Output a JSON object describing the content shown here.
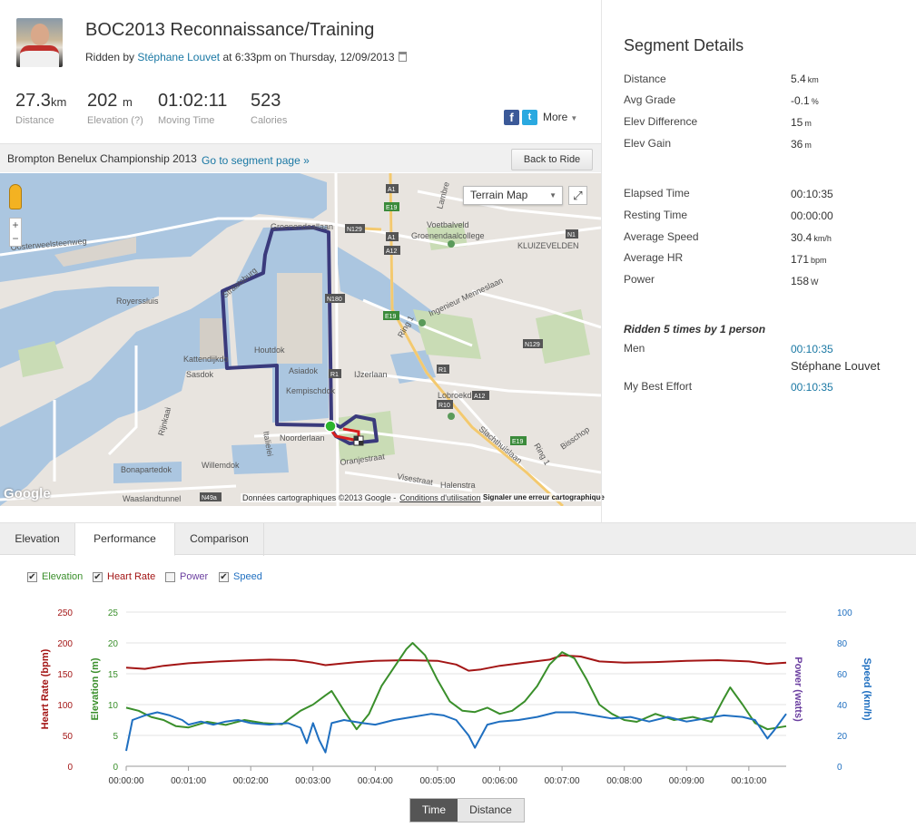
{
  "activity": {
    "title": "BOC2013 Reconnaissance/Training",
    "ridden_by_prefix": "Ridden by",
    "athlete": "Stéphane Louvet",
    "datetime_text": "at 6:33pm on Thursday, 12/09/2013"
  },
  "stats": [
    {
      "value": "27.3",
      "unit": "km",
      "label": "Distance"
    },
    {
      "value": "202",
      "unit": "m",
      "label": "Elevation (?)"
    },
    {
      "value": "01:02:11",
      "unit": "",
      "label": "Moving Time"
    },
    {
      "value": "523",
      "unit": "",
      "label": "Calories"
    }
  ],
  "share": {
    "facebook": "f",
    "twitter": "t",
    "more_label": "More"
  },
  "segment_bar": {
    "segment_name": "Brompton Benelux Championship 2013",
    "go_link": "Go to segment page »",
    "back_button": "Back to Ride"
  },
  "map": {
    "type_selector": "Terrain Map",
    "attribution": "Données cartographiques ©2013 Google -",
    "terms": "Conditions d'utilisation",
    "report": "Signaler une erreur cartographique",
    "logo": "Google",
    "zoom_in": "+",
    "zoom_out": "−",
    "labels": [
      {
        "name": "oosterweelsteenweg",
        "text": "Oosterweelsteenweg"
      },
      {
        "name": "royerssluis",
        "text": "Royerssluis"
      },
      {
        "name": "kattendijkdok",
        "text": "Kattendijkdo"
      },
      {
        "name": "sasdok",
        "text": "Sasdok"
      },
      {
        "name": "houtdok",
        "text": "Houtdok"
      },
      {
        "name": "asiadok",
        "text": "Asiadok"
      },
      {
        "name": "kempischdok",
        "text": "Kempischdok"
      },
      {
        "name": "ijzerlaan",
        "text": "IJzerlaan"
      },
      {
        "name": "noorderlaan",
        "text": "Noorderlaan"
      },
      {
        "name": "willemdok",
        "text": "Willemdok"
      },
      {
        "name": "bonapartedok",
        "text": "Bonapartedok"
      },
      {
        "name": "waaslandtunnel",
        "text": "Waaslandtunnel"
      },
      {
        "name": "voetbalveld",
        "text": "Voetbalveld"
      },
      {
        "name": "groenendaal",
        "text": "Groenendaalcollege"
      },
      {
        "name": "kluizeveldn",
        "text": "KLUIZEVELDEN"
      },
      {
        "name": "menneslaan",
        "text": "Ingenieur Menneslaan"
      },
      {
        "name": "ring1",
        "text": "Ring 1"
      },
      {
        "name": "lobroekdok",
        "text": "Lobroekdok"
      },
      {
        "name": "slachthuislaan",
        "text": "Slachthuislaan"
      },
      {
        "name": "oranjestraat",
        "text": "Oranjestraat"
      },
      {
        "name": "visestraat",
        "text": "Visestraat"
      },
      {
        "name": "halenstr",
        "text": "Halenstra"
      },
      {
        "name": "italielei",
        "text": "Italielei"
      },
      {
        "name": "rijnkaai",
        "text": "Rijnkaai"
      },
      {
        "name": "bisschop",
        "text": "Bisschop"
      },
      {
        "name": "lambre",
        "text": "Lambre"
      },
      {
        "name": "ring1b",
        "text": "Ring 1"
      },
      {
        "name": "straatsburg",
        "text": "Straatsburg"
      },
      {
        "name": "noordkasteel",
        "text": "Groenendaallaan"
      }
    ],
    "shields": [
      {
        "name": "a1-top",
        "text": "A1"
      },
      {
        "name": "e19-top",
        "text": "E19"
      },
      {
        "name": "a12-top",
        "text": "A12"
      },
      {
        "name": "a1-mid",
        "text": "A1"
      },
      {
        "name": "n129-top",
        "text": "N129"
      },
      {
        "name": "n180",
        "text": "N180"
      },
      {
        "name": "e19-mid",
        "text": "E19"
      },
      {
        "name": "n1",
        "text": "N1"
      },
      {
        "name": "n129-mid",
        "text": "N129"
      },
      {
        "name": "r1",
        "text": "R1"
      },
      {
        "name": "a12-low",
        "text": "A12"
      },
      {
        "name": "r10",
        "text": "R10"
      },
      {
        "name": "e19-low",
        "text": "E19"
      },
      {
        "name": "n49a",
        "text": "N49a"
      },
      {
        "name": "r1b",
        "text": "R1"
      }
    ]
  },
  "segment_details": {
    "heading": "Segment Details",
    "rows": [
      {
        "label": "Distance",
        "value": "5.4",
        "unit": "km"
      },
      {
        "label": "Avg Grade",
        "value": "-0.1",
        "unit": "%"
      },
      {
        "label": "Elev Difference",
        "value": "15",
        "unit": "m"
      },
      {
        "label": "Elev Gain",
        "value": "36",
        "unit": "m"
      }
    ],
    "rows2": [
      {
        "label": "Elapsed Time",
        "value": "00:10:35",
        "unit": ""
      },
      {
        "label": "Resting Time",
        "value": "00:00:00",
        "unit": ""
      },
      {
        "label": "Average Speed",
        "value": "30.4",
        "unit": "km/h"
      },
      {
        "label": "Average HR",
        "value": "171",
        "unit": "bpm"
      },
      {
        "label": "Power",
        "value": "158",
        "unit": "W"
      }
    ],
    "ridden": "Ridden 5 times by 1 person",
    "men_label": "Men",
    "men_time": "00:10:35",
    "men_name": "Stéphane Louvet",
    "best_label": "My Best Effort",
    "best_time": "00:10:35"
  },
  "tabs": [
    "Elevation",
    "Performance",
    "Comparison"
  ],
  "legend": [
    {
      "label": "Elevation",
      "checked": true,
      "color": "#3a8f2b"
    },
    {
      "label": "Heart Rate",
      "checked": true,
      "color": "#a31515"
    },
    {
      "label": "Power",
      "checked": false,
      "color": "#6b3fa0"
    },
    {
      "label": "Speed",
      "checked": true,
      "color": "#1f6fc0"
    }
  ],
  "toggle": {
    "time": "Time",
    "distance": "Distance"
  },
  "chart_data": {
    "type": "line",
    "x": [
      "00:00:00",
      "00:01:00",
      "00:02:00",
      "00:03:00",
      "00:04:00",
      "00:05:00",
      "00:06:00",
      "00:07:00",
      "00:08:00",
      "00:09:00",
      "00:10:00"
    ],
    "axes": {
      "heart_rate": {
        "label": "Heart Rate (bpm)",
        "ticks": [
          "0",
          "50",
          "100",
          "150",
          "200",
          "250"
        ],
        "range": [
          0,
          250
        ],
        "color": "#a31515"
      },
      "elevation": {
        "label": "Elevation (m)",
        "ticks": [
          "0",
          "5",
          "10",
          "15",
          "20",
          "25"
        ],
        "range": [
          0,
          25
        ],
        "color": "#3a8f2b"
      },
      "power": {
        "label": "Power (watts)",
        "color": "#6b3fa0"
      },
      "speed": {
        "label": "Speed (km/h)",
        "ticks": [
          "0",
          "20",
          "40",
          "60",
          "80",
          "100"
        ],
        "range": [
          0,
          100
        ],
        "color": "#1f6fc0"
      }
    },
    "time_range_min": [
      0,
      10.6
    ],
    "series": [
      {
        "name": "Heart Rate",
        "axis": "heart_rate",
        "color": "#a31515",
        "points": [
          [
            0,
            160
          ],
          [
            0.3,
            158
          ],
          [
            0.6,
            163
          ],
          [
            1.0,
            167
          ],
          [
            1.5,
            170
          ],
          [
            2.0,
            172
          ],
          [
            2.3,
            173
          ],
          [
            2.7,
            172
          ],
          [
            3.0,
            168
          ],
          [
            3.2,
            164
          ],
          [
            3.4,
            166
          ],
          [
            3.7,
            169
          ],
          [
            4.0,
            171
          ],
          [
            4.5,
            172
          ],
          [
            5.0,
            171
          ],
          [
            5.3,
            165
          ],
          [
            5.5,
            155
          ],
          [
            5.7,
            157
          ],
          [
            6.0,
            163
          ],
          [
            6.4,
            168
          ],
          [
            6.8,
            173
          ],
          [
            7.0,
            180
          ],
          [
            7.3,
            178
          ],
          [
            7.6,
            170
          ],
          [
            8.0,
            168
          ],
          [
            8.5,
            169
          ],
          [
            9.0,
            171
          ],
          [
            9.5,
            172
          ],
          [
            10.0,
            170
          ],
          [
            10.3,
            166
          ],
          [
            10.6,
            168
          ]
        ]
      },
      {
        "name": "Elevation",
        "axis": "elevation",
        "color": "#3a8f2b",
        "points": [
          [
            0,
            9.5
          ],
          [
            0.2,
            9.0
          ],
          [
            0.4,
            8.0
          ],
          [
            0.6,
            7.5
          ],
          [
            0.8,
            6.5
          ],
          [
            1.0,
            6.3
          ],
          [
            1.3,
            7.2
          ],
          [
            1.6,
            6.7
          ],
          [
            1.9,
            7.5
          ],
          [
            2.2,
            7.0
          ],
          [
            2.5,
            6.8
          ],
          [
            2.8,
            9.0
          ],
          [
            3.0,
            10.0
          ],
          [
            3.2,
            11.5
          ],
          [
            3.3,
            12.2
          ],
          [
            3.5,
            9.0
          ],
          [
            3.7,
            6.0
          ],
          [
            3.9,
            8.5
          ],
          [
            4.1,
            13.0
          ],
          [
            4.3,
            16.0
          ],
          [
            4.5,
            19.0
          ],
          [
            4.6,
            20.0
          ],
          [
            4.8,
            18.0
          ],
          [
            5.0,
            14.0
          ],
          [
            5.2,
            10.5
          ],
          [
            5.4,
            9.0
          ],
          [
            5.6,
            8.8
          ],
          [
            5.8,
            9.5
          ],
          [
            6.0,
            8.5
          ],
          [
            6.2,
            9.0
          ],
          [
            6.4,
            10.5
          ],
          [
            6.6,
            13.0
          ],
          [
            6.8,
            16.5
          ],
          [
            7.0,
            18.5
          ],
          [
            7.2,
            17.5
          ],
          [
            7.4,
            14.0
          ],
          [
            7.6,
            10.0
          ],
          [
            7.8,
            8.5
          ],
          [
            8.0,
            7.5
          ],
          [
            8.2,
            7.2
          ],
          [
            8.5,
            8.5
          ],
          [
            8.8,
            7.5
          ],
          [
            9.1,
            8.0
          ],
          [
            9.4,
            7.2
          ],
          [
            9.6,
            11.0
          ],
          [
            9.7,
            12.8
          ],
          [
            9.9,
            10.0
          ],
          [
            10.1,
            7.0
          ],
          [
            10.3,
            6.0
          ],
          [
            10.6,
            6.5
          ]
        ]
      },
      {
        "name": "Speed",
        "axis": "speed",
        "color": "#1f6fc0",
        "points": [
          [
            0,
            10
          ],
          [
            0.1,
            30
          ],
          [
            0.3,
            33
          ],
          [
            0.5,
            35
          ],
          [
            0.7,
            33
          ],
          [
            0.9,
            30
          ],
          [
            1.0,
            27
          ],
          [
            1.2,
            29
          ],
          [
            1.4,
            27
          ],
          [
            1.6,
            29
          ],
          [
            1.8,
            30
          ],
          [
            2.0,
            28
          ],
          [
            2.3,
            27
          ],
          [
            2.6,
            28
          ],
          [
            2.8,
            25
          ],
          [
            2.9,
            15
          ],
          [
            3.0,
            28
          ],
          [
            3.1,
            17
          ],
          [
            3.2,
            9
          ],
          [
            3.3,
            28
          ],
          [
            3.5,
            30
          ],
          [
            3.8,
            28
          ],
          [
            4.0,
            27
          ],
          [
            4.3,
            30
          ],
          [
            4.6,
            32
          ],
          [
            4.9,
            34
          ],
          [
            5.1,
            33
          ],
          [
            5.3,
            30
          ],
          [
            5.5,
            20
          ],
          [
            5.6,
            12
          ],
          [
            5.8,
            27
          ],
          [
            6.0,
            29
          ],
          [
            6.3,
            30
          ],
          [
            6.6,
            32
          ],
          [
            6.9,
            35
          ],
          [
            7.2,
            35
          ],
          [
            7.5,
            33
          ],
          [
            7.8,
            31
          ],
          [
            8.1,
            32
          ],
          [
            8.4,
            29
          ],
          [
            8.7,
            32
          ],
          [
            9.0,
            29
          ],
          [
            9.3,
            31
          ],
          [
            9.6,
            33
          ],
          [
            9.9,
            32
          ],
          [
            10.1,
            30
          ],
          [
            10.3,
            18
          ],
          [
            10.4,
            23
          ],
          [
            10.6,
            34
          ]
        ]
      }
    ]
  }
}
